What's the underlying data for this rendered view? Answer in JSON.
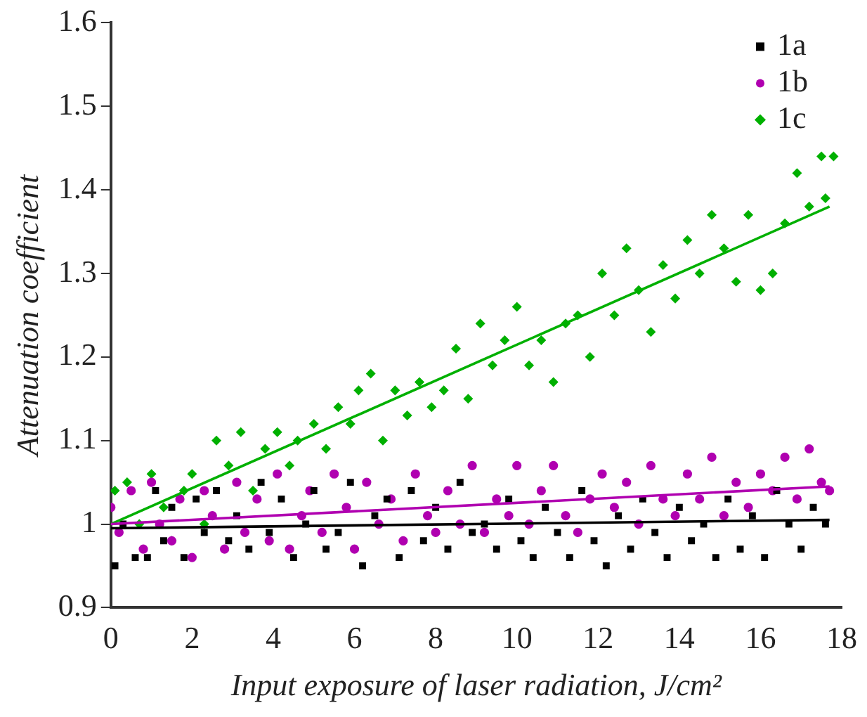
{
  "chart_data": {
    "type": "scatter",
    "xlabel": "Input exposure of laser radiation, J/cm²",
    "ylabel": "Attenuation coefficient",
    "xlim": [
      0,
      18
    ],
    "xticks": [
      0,
      2,
      4,
      6,
      8,
      10,
      12,
      14,
      16,
      18
    ],
    "ylim": [
      0.9,
      1.6
    ],
    "yticks": [
      0.9,
      1.0,
      1.1,
      1.2,
      1.3,
      1.4,
      1.5,
      1.6
    ],
    "grid": false,
    "legend": "top right",
    "series": [
      {
        "name": "1a",
        "color": "#000000",
        "marker": "square",
        "x": [
          0.1,
          0.3,
          0.6,
          0.9,
          1.1,
          1.3,
          1.5,
          1.8,
          2.1,
          2.3,
          2.6,
          2.9,
          3.1,
          3.4,
          3.7,
          3.9,
          4.2,
          4.5,
          4.8,
          5.0,
          5.3,
          5.6,
          5.9,
          6.2,
          6.5,
          6.8,
          7.1,
          7.4,
          7.7,
          8.0,
          8.3,
          8.6,
          8.9,
          9.2,
          9.5,
          9.8,
          10.1,
          10.4,
          10.7,
          11.0,
          11.3,
          11.6,
          11.9,
          12.2,
          12.5,
          12.8,
          13.1,
          13.4,
          13.7,
          14.0,
          14.3,
          14.6,
          14.9,
          15.2,
          15.5,
          15.8,
          16.1,
          16.4,
          16.7,
          17.0,
          17.3,
          17.6
        ],
        "values": [
          0.95,
          1.0,
          0.96,
          0.96,
          1.04,
          0.98,
          1.02,
          0.96,
          1.03,
          0.99,
          1.04,
          0.98,
          1.01,
          0.97,
          1.05,
          0.99,
          1.03,
          0.96,
          1.0,
          1.04,
          0.97,
          0.99,
          1.05,
          0.95,
          1.01,
          1.03,
          0.96,
          1.04,
          0.98,
          1.02,
          0.97,
          1.05,
          0.99,
          1.0,
          0.97,
          1.03,
          0.98,
          0.96,
          1.02,
          0.99,
          0.96,
          1.04,
          0.98,
          0.95,
          1.01,
          0.97,
          1.03,
          0.99,
          0.96,
          1.02,
          0.98,
          1.0,
          0.96,
          1.03,
          0.97,
          1.01,
          0.96,
          1.04,
          1.0,
          0.97,
          1.02,
          1.0
        ]
      },
      {
        "name": "1b",
        "color": "#b000b0",
        "marker": "circle",
        "x": [
          0.0,
          0.2,
          0.5,
          0.8,
          1.0,
          1.2,
          1.5,
          1.7,
          2.0,
          2.3,
          2.5,
          2.8,
          3.1,
          3.3,
          3.6,
          3.9,
          4.1,
          4.4,
          4.7,
          4.9,
          5.2,
          5.5,
          5.8,
          6.0,
          6.3,
          6.6,
          6.9,
          7.2,
          7.5,
          7.8,
          8.0,
          8.3,
          8.6,
          8.9,
          9.2,
          9.5,
          9.8,
          10.0,
          10.3,
          10.6,
          10.9,
          11.2,
          11.5,
          11.8,
          12.1,
          12.4,
          12.7,
          13.0,
          13.3,
          13.6,
          13.9,
          14.2,
          14.5,
          14.8,
          15.1,
          15.4,
          15.7,
          16.0,
          16.3,
          16.6,
          16.9,
          17.2,
          17.5,
          17.7
        ],
        "values": [
          1.02,
          0.99,
          1.04,
          0.97,
          1.05,
          1.0,
          0.98,
          1.03,
          0.96,
          1.04,
          1.01,
          0.97,
          1.05,
          0.99,
          1.03,
          0.98,
          1.06,
          0.97,
          1.01,
          1.04,
          0.99,
          1.06,
          1.02,
          0.97,
          1.05,
          1.0,
          1.03,
          0.98,
          1.06,
          1.01,
          0.99,
          1.04,
          1.0,
          1.07,
          0.99,
          1.03,
          1.01,
          1.07,
          1.0,
          1.04,
          1.07,
          1.01,
          0.99,
          1.03,
          1.06,
          1.02,
          1.05,
          1.0,
          1.07,
          1.03,
          1.01,
          1.06,
          1.03,
          1.08,
          1.01,
          1.05,
          1.02,
          1.06,
          1.04,
          1.08,
          1.03,
          1.09,
          1.05,
          1.04
        ]
      },
      {
        "name": "1c",
        "color": "#00b000",
        "marker": "diamond",
        "x": [
          0.1,
          0.4,
          0.7,
          1.0,
          1.3,
          1.5,
          1.8,
          2.0,
          2.3,
          2.6,
          2.9,
          3.2,
          3.5,
          3.8,
          4.1,
          4.4,
          4.6,
          5.0,
          5.3,
          5.6,
          5.9,
          6.1,
          6.4,
          6.7,
          7.0,
          7.3,
          7.6,
          7.9,
          8.2,
          8.5,
          8.8,
          9.1,
          9.4,
          9.7,
          10.0,
          10.3,
          10.6,
          10.9,
          11.2,
          11.5,
          11.8,
          12.1,
          12.4,
          12.7,
          13.0,
          13.3,
          13.6,
          13.9,
          14.2,
          14.5,
          14.8,
          15.1,
          15.4,
          15.7,
          16.0,
          16.3,
          16.6,
          16.9,
          17.2,
          17.5,
          17.6,
          17.8
        ],
        "values": [
          1.04,
          1.05,
          1.0,
          1.06,
          1.02,
          0.98,
          1.04,
          1.06,
          1.0,
          1.1,
          1.07,
          1.11,
          1.04,
          1.09,
          1.11,
          1.07,
          1.1,
          1.12,
          1.09,
          1.14,
          1.12,
          1.16,
          1.18,
          1.1,
          1.16,
          1.13,
          1.17,
          1.14,
          1.16,
          1.21,
          1.15,
          1.24,
          1.19,
          1.22,
          1.26,
          1.19,
          1.22,
          1.17,
          1.24,
          1.25,
          1.2,
          1.3,
          1.25,
          1.33,
          1.28,
          1.23,
          1.31,
          1.27,
          1.34,
          1.3,
          1.37,
          1.33,
          1.29,
          1.37,
          1.28,
          1.3,
          1.36,
          1.42,
          1.38,
          1.44,
          1.39,
          1.44
        ]
      },
      {
        "type": "line",
        "color": "#000000",
        "marker": "none",
        "x": [
          0,
          17.7
        ],
        "values": [
          0.995,
          1.005
        ]
      },
      {
        "type": "line",
        "color": "#b000b0",
        "marker": "none",
        "x": [
          0,
          17.7
        ],
        "values": [
          1.0,
          1.045
        ]
      },
      {
        "type": "line",
        "color": "#00b000",
        "marker": "none",
        "x": [
          0,
          17.7
        ],
        "values": [
          1.0,
          1.38
        ]
      }
    ]
  }
}
